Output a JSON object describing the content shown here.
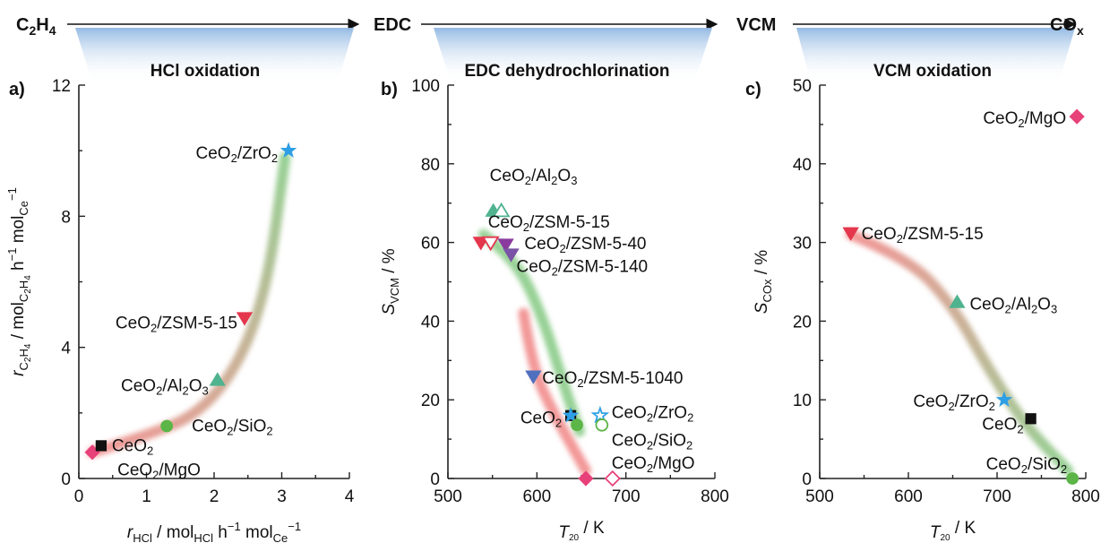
{
  "process": {
    "labels": [
      {
        "main": "C",
        "sub1": "2",
        "mid": "H",
        "sub2": "4"
      },
      {
        "main": "EDC"
      },
      {
        "main": "VCM"
      },
      {
        "main": "CO",
        "sub1": "x"
      }
    ],
    "steps": [
      "HCl oxidation",
      "EDC dehydrochlorination",
      "VCM oxidation"
    ]
  },
  "colors": {
    "pink": "#e8417a",
    "black": "#111111",
    "green": "#5cb547",
    "red": "#e4364d",
    "teal": "#4fb38f",
    "blue": "#2e9fe6",
    "purple": "#8a3a9e",
    "violet": "#7a52a6",
    "steelblue": "#4f6fbf",
    "trendGreen": "#7cc57a",
    "trendRed": "#ef7d7d",
    "banner": "#a9c8ea"
  },
  "chart_data": [
    {
      "type": "scatter",
      "panel": "a)",
      "title": "HCl oxidation",
      "xlabel": {
        "base": "r",
        "sub": "HCl",
        "rest": " / mol",
        "sub2": "HCl",
        "rest2": " h",
        "sup": "−1",
        "rest3": " mol",
        "sub3": "Ce",
        "sup2": "−1"
      },
      "ylabel": {
        "base": "r",
        "sub": "C2H4",
        "rest": " / mol",
        "sub2": "C2H4",
        "rest2": " h",
        "sup": "−1",
        "rest3": " mol",
        "sub3": "Ce",
        "sup2": "−1"
      },
      "xlim": [
        0,
        4
      ],
      "ylim": [
        0,
        12
      ],
      "xticks": [
        0,
        1,
        2,
        3,
        4
      ],
      "yticks": [
        0,
        4,
        8,
        12
      ],
      "points": [
        {
          "label": "CeO2/MgO",
          "x": 0.2,
          "y": 0.8,
          "marker": "diamond",
          "color": "pink",
          "filled": true
        },
        {
          "label": "CeO2",
          "x": 0.33,
          "y": 1.0,
          "marker": "square",
          "color": "black",
          "filled": true
        },
        {
          "label": "CeO2/SiO2",
          "x": 1.3,
          "y": 1.6,
          "marker": "circle",
          "color": "green",
          "filled": true
        },
        {
          "label": "CeO2/Al2O3",
          "x": 2.05,
          "y": 3.0,
          "marker": "triangle-up",
          "color": "teal",
          "filled": true
        },
        {
          "label": "CeO2/ZSM-5-15",
          "x": 2.45,
          "y": 4.9,
          "marker": "triangle-down",
          "color": "red",
          "filled": true
        },
        {
          "label": "CeO2/ZrO2",
          "x": 3.1,
          "y": 10.0,
          "marker": "star",
          "color": "blue",
          "filled": true
        }
      ]
    },
    {
      "type": "scatter",
      "panel": "b)",
      "title": "EDC dehydrochlorination",
      "xlabel": {
        "base": "T",
        "sub": "20",
        "rest": " / K"
      },
      "ylabel": {
        "base": "S",
        "sub": "VCM",
        "rest": " / %"
      },
      "xlim": [
        500,
        800
      ],
      "ylim": [
        0,
        100
      ],
      "xticks": [
        500,
        600,
        700,
        800
      ],
      "yticks": [
        0,
        20,
        40,
        60,
        80,
        100
      ],
      "points": [
        {
          "label": "CeO2/Al2O3",
          "x": 551,
          "y": 68,
          "marker": "triangle-up",
          "color": "teal",
          "filled": true
        },
        {
          "label": "CeO2/Al2O3",
          "x": 560,
          "y": 68,
          "marker": "triangle-up",
          "color": "teal",
          "filled": false
        },
        {
          "label": "CeO2/ZSM-5-15",
          "x": 537,
          "y": 60,
          "marker": "triangle-down",
          "color": "red",
          "filled": true
        },
        {
          "label": "CeO2/ZSM-5-15",
          "x": 548,
          "y": 60,
          "marker": "triangle-down",
          "color": "red",
          "filled": false
        },
        {
          "label": "CeO2/ZSM-5-40",
          "x": 565,
          "y": 59.5,
          "marker": "triangle-down",
          "color": "purple",
          "filled": true
        },
        {
          "label": "CeO2/ZSM-5-140",
          "x": 571,
          "y": 57,
          "marker": "triangle-down",
          "color": "violet",
          "filled": true
        },
        {
          "label": "CeO2/ZSM-5-1040",
          "x": 596,
          "y": 26,
          "marker": "triangle-down",
          "color": "steelblue",
          "filled": true
        },
        {
          "label": "CeO2",
          "x": 638,
          "y": 16,
          "marker": "square",
          "color": "black",
          "filled": true
        },
        {
          "label": "CeO2/ZrO2",
          "x": 638,
          "y": 16,
          "marker": "star",
          "color": "blue",
          "filled": true
        },
        {
          "label": "CeO2/ZrO2",
          "x": 671,
          "y": 16,
          "marker": "star",
          "color": "blue",
          "filled": false
        },
        {
          "label": "CeO2/SiO2",
          "x": 645,
          "y": 13.6,
          "marker": "circle",
          "color": "green",
          "filled": true
        },
        {
          "label": "CeO2/SiO2",
          "x": 673,
          "y": 13.6,
          "marker": "circle",
          "color": "green",
          "filled": false
        },
        {
          "label": "CeO2/MgO",
          "x": 655,
          "y": 0,
          "marker": "diamond",
          "color": "pink",
          "filled": true
        },
        {
          "label": "CeO2/MgO",
          "x": 685,
          "y": 0,
          "marker": "diamond",
          "color": "pink",
          "filled": false
        }
      ]
    },
    {
      "type": "scatter",
      "panel": "c)",
      "title": "VCM oxidation",
      "xlabel": {
        "base": "T",
        "sub": "20",
        "rest": " / K"
      },
      "ylabel": {
        "base": "S",
        "sub": "COx",
        "rest": " / %"
      },
      "xlim": [
        500,
        800
      ],
      "ylim": [
        0,
        50
      ],
      "xticks": [
        500,
        600,
        700,
        800
      ],
      "yticks": [
        0,
        10,
        20,
        30,
        40,
        50
      ],
      "points": [
        {
          "label": "CeO2/MgO",
          "x": 790,
          "y": 46,
          "marker": "diamond",
          "color": "pink",
          "filled": true
        },
        {
          "label": "CeO2/ZSM-5-15",
          "x": 535,
          "y": 31.2,
          "marker": "triangle-down",
          "color": "red",
          "filled": true
        },
        {
          "label": "CeO2/Al2O3",
          "x": 655,
          "y": 22.4,
          "marker": "triangle-up",
          "color": "teal",
          "filled": true
        },
        {
          "label": "CeO2/ZrO2",
          "x": 708,
          "y": 10,
          "marker": "star",
          "color": "blue",
          "filled": true
        },
        {
          "label": "CeO2",
          "x": 738,
          "y": 7.6,
          "marker": "square",
          "color": "black",
          "filled": true
        },
        {
          "label": "CeO2/SiO2",
          "x": 785,
          "y": 0,
          "marker": "circle",
          "color": "green",
          "filled": true
        }
      ]
    }
  ]
}
